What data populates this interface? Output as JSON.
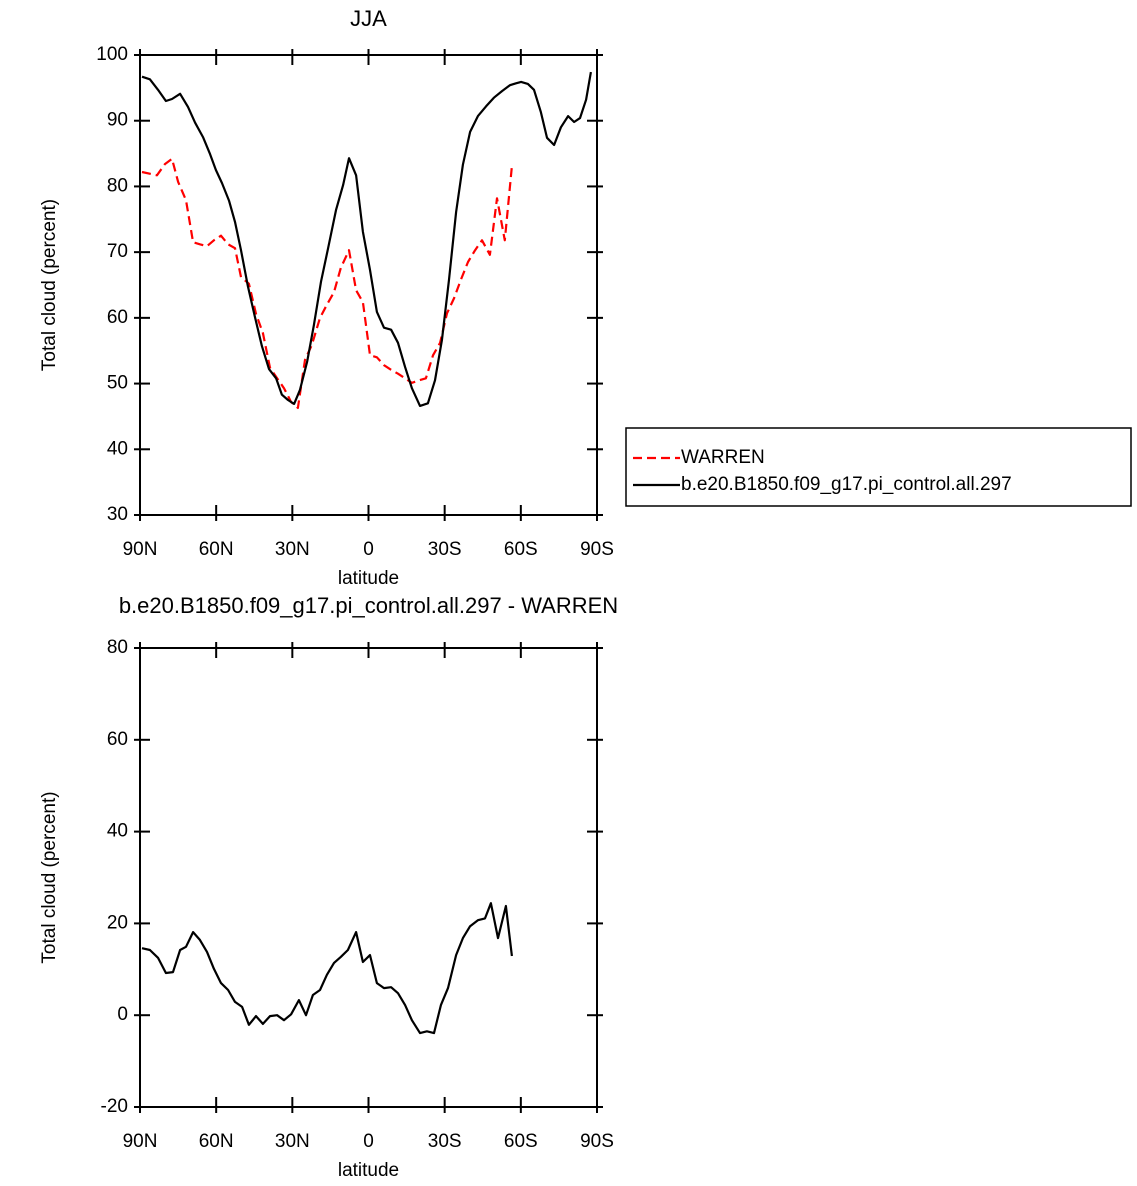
{
  "chart_data": [
    {
      "type": "line",
      "title": "JJA",
      "xlabel": "latitude",
      "ylabel": "Total cloud (percent)",
      "xlim": [
        90,
        -90
      ],
      "ylim": [
        30,
        100
      ],
      "xticks": [
        {
          "value": 90,
          "label": "90N"
        },
        {
          "value": 60,
          "label": "60N"
        },
        {
          "value": 30,
          "label": "30N"
        },
        0,
        {
          "value": -30,
          "label": "30S"
        },
        {
          "value": -60,
          "label": "60S"
        },
        {
          "value": -90,
          "label": "90S"
        }
      ],
      "yticks": [
        30,
        40,
        50,
        60,
        70,
        80,
        90,
        100
      ],
      "legend": "outside right",
      "series": [
        {
          "name": "WARREN",
          "color": "#ff0000",
          "dash": true,
          "x": [
            89.2,
            83.3,
            80.2,
            77.4,
            75.0,
            71.9,
            69.1,
            66.4,
            63.6,
            60.9,
            58.1,
            55.3,
            52.6,
            50.2,
            47.1,
            44.3,
            41.6,
            38.8,
            36.0,
            33.3,
            30.5,
            27.8,
            25.0,
            22.3,
            19.1,
            16.4,
            13.6,
            10.9,
            7.7,
            4.9,
            2.2,
            -0.6,
            -3.3,
            -6.1,
            -8.9,
            -11.6,
            -14.4,
            -17.1,
            -19.9,
            -22.6,
            -25.4,
            -28.2,
            -30.9,
            -33.7,
            -36.4,
            -39.2,
            -42.0,
            -44.7,
            -47.8,
            -50.6,
            -53.7,
            -56.5
          ],
          "values": [
            82.2,
            81.7,
            83.4,
            84.2,
            80.7,
            77.9,
            71.5,
            71.2,
            70.9,
            71.8,
            72.5,
            71.2,
            70.6,
            66.2,
            65.2,
            60.6,
            57.7,
            52.4,
            50.8,
            49.3,
            47.2,
            46.3,
            53.6,
            55.9,
            60.0,
            62.0,
            63.9,
            67.6,
            70.3,
            64.2,
            62.4,
            54.3,
            54.0,
            52.8,
            52.1,
            51.5,
            50.8,
            50.1,
            50.5,
            50.8,
            54.3,
            56.2,
            60.7,
            63.0,
            65.8,
            68.5,
            70.3,
            71.8,
            69.6,
            78.2,
            71.8,
            83.1
          ]
        },
        {
          "name": "b.e20.B1850.f09_g17.pi_control.all.297",
          "color": "#000000",
          "dash": false,
          "x": [
            89.2,
            86.1,
            82.9,
            79.8,
            77.4,
            74.2,
            71.1,
            68.3,
            65.2,
            62.4,
            60.1,
            57.7,
            54.9,
            52.6,
            50.2,
            47.5,
            44.7,
            42.0,
            39.2,
            36.4,
            34.1,
            31.7,
            29.3,
            27.0,
            24.2,
            21.5,
            18.7,
            15.9,
            12.8,
            10.0,
            7.7,
            4.9,
            2.2,
            -0.6,
            -3.3,
            -6.1,
            -8.9,
            -11.6,
            -14.4,
            -17.1,
            -20.3,
            -23.4,
            -26.2,
            -28.9,
            -31.7,
            -34.5,
            -37.2,
            -40.0,
            -43.1,
            -46.3,
            -49.4,
            -52.6,
            -55.7,
            -58.1,
            -60.1,
            -62.8,
            -65.2,
            -67.9,
            -70.3,
            -73.1,
            -75.8,
            -78.6,
            -81.0,
            -83.3,
            -85.7,
            -87.6
          ],
          "values": [
            96.7,
            96.3,
            94.7,
            93.0,
            93.3,
            94.1,
            92.1,
            89.7,
            87.5,
            84.9,
            82.5,
            80.5,
            77.8,
            74.6,
            70.3,
            64.8,
            60.1,
            55.7,
            52.2,
            50.8,
            48.3,
            47.5,
            46.9,
            49.0,
            53.3,
            58.9,
            65.5,
            70.6,
            76.4,
            80.2,
            84.3,
            81.7,
            73.1,
            67.3,
            60.9,
            58.5,
            58.2,
            56.2,
            52.5,
            49.3,
            46.6,
            47.0,
            50.5,
            56.6,
            65.8,
            76.1,
            83.3,
            88.3,
            90.7,
            92.2,
            93.5,
            94.5,
            95.4,
            95.7,
            95.9,
            95.6,
            94.7,
            91.3,
            87.4,
            86.3,
            89.0,
            90.7,
            89.8,
            90.4,
            93.2,
            97.4
          ]
        }
      ]
    },
    {
      "type": "line",
      "title": "b.e20.B1850.f09_g17.pi_control.all.297 - WARREN",
      "xlabel": "latitude",
      "ylabel": "Total cloud (percent)",
      "xlim": [
        90,
        -90
      ],
      "ylim": [
        -20,
        80
      ],
      "xticks": [
        {
          "value": 90,
          "label": "90N"
        },
        {
          "value": 60,
          "label": "60N"
        },
        {
          "value": 30,
          "label": "30N"
        },
        0,
        {
          "value": -30,
          "label": "30S"
        },
        {
          "value": -60,
          "label": "60S"
        },
        {
          "value": -90,
          "label": "90S"
        }
      ],
      "yticks": [
        -20,
        0,
        20,
        40,
        60,
        80
      ],
      "series": [
        {
          "color": "#000000",
          "dash": false,
          "x": [
            89.2,
            86.1,
            82.9,
            79.8,
            77.0,
            74.2,
            71.9,
            69.1,
            66.4,
            63.6,
            60.9,
            58.1,
            55.3,
            52.6,
            49.8,
            47.1,
            44.3,
            41.6,
            38.8,
            36.0,
            33.3,
            30.5,
            27.4,
            24.6,
            21.9,
            19.1,
            16.4,
            13.6,
            10.9,
            8.1,
            4.9,
            2.2,
            -0.6,
            -3.3,
            -6.1,
            -8.9,
            -11.6,
            -14.4,
            -17.1,
            -20.3,
            -23.0,
            -25.8,
            -28.5,
            -31.3,
            -34.5,
            -37.2,
            -40.0,
            -43.1,
            -45.9,
            -48.2,
            -51.0,
            -54.1,
            -56.5
          ],
          "values": [
            14.6,
            14.2,
            12.5,
            9.2,
            9.4,
            14.2,
            14.9,
            18.1,
            16.4,
            13.8,
            10.1,
            7.0,
            5.5,
            2.9,
            1.8,
            -2.1,
            -0.2,
            -1.9,
            -0.2,
            0.0,
            -1.1,
            0.2,
            3.3,
            0.0,
            4.4,
            5.5,
            8.8,
            11.4,
            12.7,
            14.2,
            18.1,
            11.6,
            13.1,
            7.0,
            5.9,
            6.1,
            4.8,
            2.2,
            -1.1,
            -3.9,
            -3.5,
            -3.9,
            2.2,
            5.9,
            13.1,
            16.8,
            19.4,
            20.7,
            21.1,
            24.4,
            16.8,
            23.8,
            12.9
          ]
        }
      ]
    }
  ]
}
